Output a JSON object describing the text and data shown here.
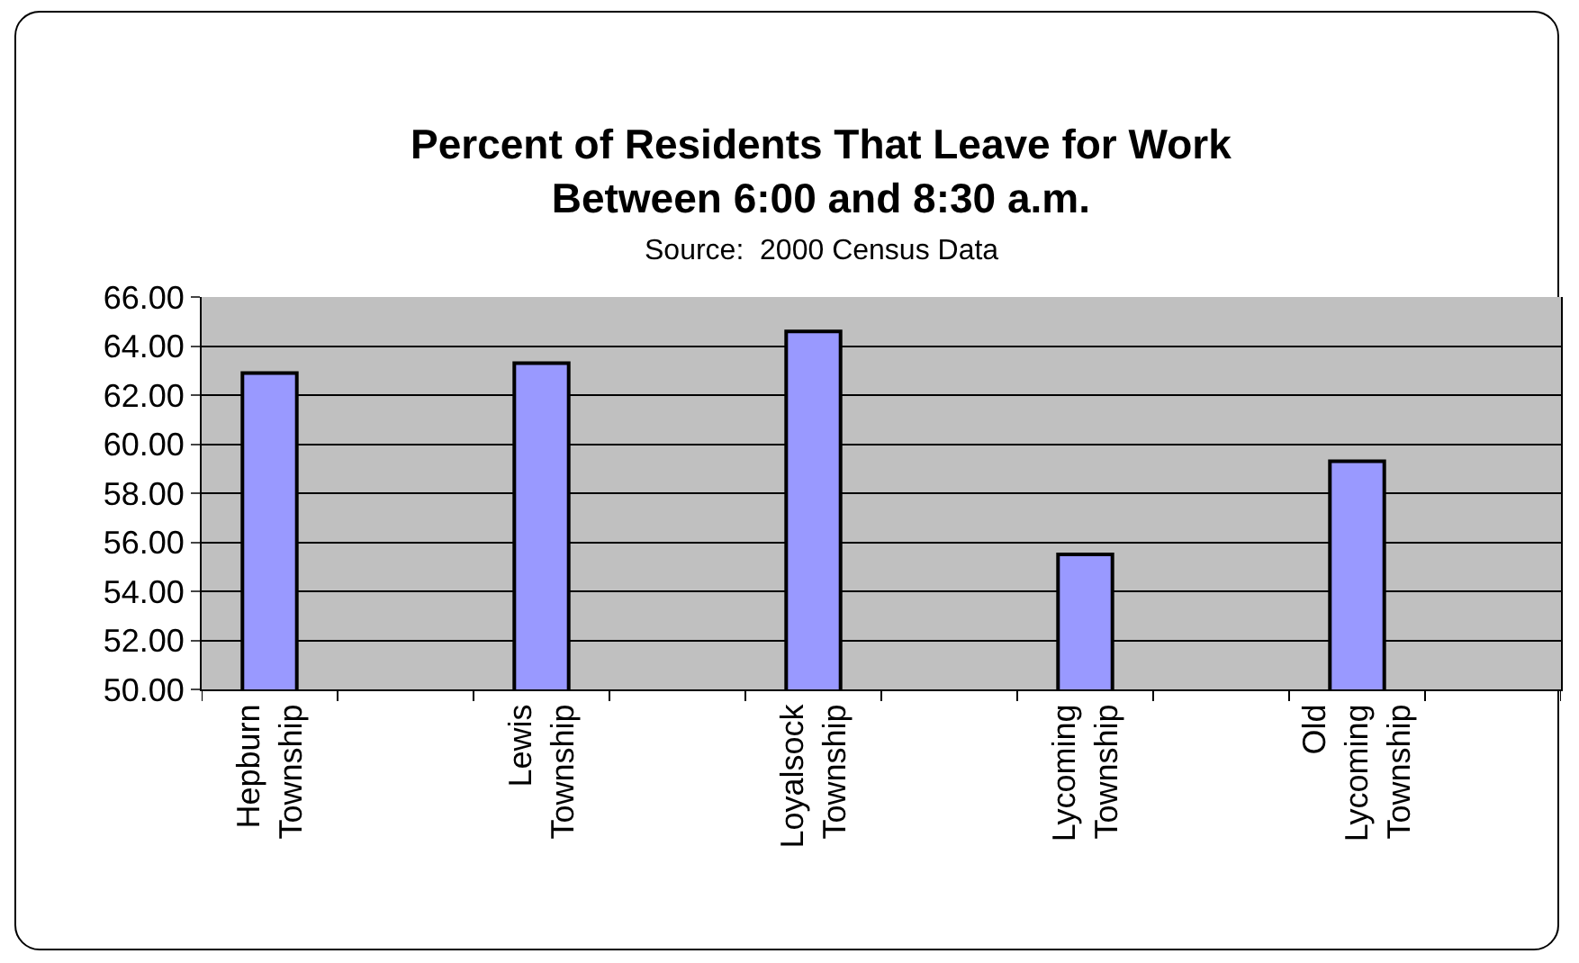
{
  "chart_data": {
    "type": "bar",
    "title": "Percent of Residents That Leave for Work Between 6:00 and 8:30 a.m.",
    "subtitle": "Source:  2000 Census Data",
    "categories": [
      "Hepburn Township",
      "Lewis Township",
      "Loyalsock Township",
      "Lycoming Township",
      "Old Lycoming Township"
    ],
    "values": [
      62.9,
      63.3,
      64.6,
      55.5,
      59.3
    ],
    "color": "#9999ff",
    "ylim": [
      50,
      66
    ],
    "yticks": [
      {
        "value": 50,
        "label": "50.00"
      },
      {
        "value": 52,
        "label": "52.00"
      },
      {
        "value": 54,
        "label": "54.00"
      },
      {
        "value": 56,
        "label": "56.00"
      },
      {
        "value": 58,
        "label": "58.00"
      },
      {
        "value": 60,
        "label": "60.00"
      },
      {
        "value": 62,
        "label": "62.00"
      },
      {
        "value": 64,
        "label": "64.00"
      },
      {
        "value": 66,
        "label": "66.00"
      }
    ],
    "grid": "y"
  }
}
